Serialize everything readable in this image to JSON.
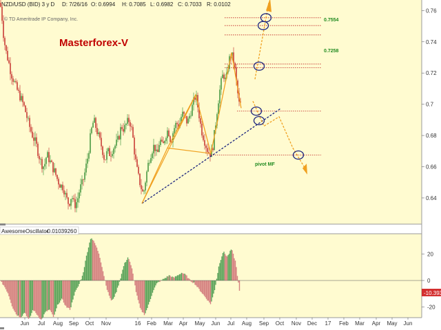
{
  "header": {
    "symbol": "NZD/USD (BID) 3 y D",
    "date": "D: 7/26/16",
    "open": "O: 0.6994",
    "high": "H: 0.7085",
    "low": "L: 0.6982",
    "close": "C: 0.7033",
    "range": "R: 0.0102",
    "copyright": "© TD Ameritrade IP Company, Inc."
  },
  "watermark": "Masterforex-V",
  "annotations": {
    "level_1": "0.7554",
    "level_2": "0.7258",
    "pivot": "pivot MF"
  },
  "oscillator": {
    "name": "AwesomeOscillator",
    "value": "-0.0103926",
    "zero_label": "0",
    "current_value": "-10.393",
    "y_ticks": [
      "20",
      "0",
      "-20"
    ]
  },
  "colors": {
    "panel_bg": "#fffbd0",
    "up_candle": "#2e8b2e",
    "down_candle": "#c02020",
    "trend_line": "#1a237e",
    "pattern_line": "#f0a020",
    "level_line": "#c02020",
    "osc_up": "#5aa35a",
    "osc_down": "#d47f7f",
    "badge": "#d32f2f"
  },
  "chart_data": {
    "type": "candlestick",
    "y_ticks": [
      "0.76",
      "0.74",
      "0.72",
      "0.7",
      "0.68",
      "0.66",
      "0.64"
    ],
    "x_ticks": [
      "Jun",
      "Jul",
      "Aug",
      "Sep",
      "Oct",
      "Nov",
      "16",
      "Feb",
      "Mar",
      "Apr",
      "May",
      "Jun",
      "Jul",
      "Aug",
      "Sep",
      "Oct",
      "Nov",
      "Dec",
      "17",
      "Feb",
      "Mar",
      "Apr",
      "May",
      "Jun"
    ],
    "ylim": [
      0.625,
      0.765
    ],
    "price_path": [
      [
        0,
        0.765
      ],
      [
        2,
        0.76
      ],
      [
        5,
        0.745
      ],
      [
        8,
        0.735
      ],
      [
        12,
        0.728
      ],
      [
        16,
        0.72
      ],
      [
        20,
        0.715
      ],
      [
        24,
        0.71
      ],
      [
        28,
        0.706
      ],
      [
        32,
        0.702
      ],
      [
        36,
        0.697
      ],
      [
        40,
        0.69
      ],
      [
        44,
        0.684
      ],
      [
        48,
        0.679
      ],
      [
        52,
        0.675
      ],
      [
        56,
        0.668
      ],
      [
        60,
        0.662
      ],
      [
        64,
        0.66
      ],
      [
        68,
        0.668
      ],
      [
        72,
        0.664
      ],
      [
        76,
        0.66
      ],
      [
        80,
        0.656
      ],
      [
        84,
        0.651
      ],
      [
        88,
        0.648
      ],
      [
        92,
        0.647
      ],
      [
        96,
        0.64
      ],
      [
        100,
        0.636
      ],
      [
        104,
        0.642
      ],
      [
        108,
        0.635
      ],
      [
        112,
        0.638
      ],
      [
        116,
        0.646
      ],
      [
        120,
        0.65
      ],
      [
        124,
        0.658
      ],
      [
        128,
        0.668
      ],
      [
        132,
        0.682
      ],
      [
        136,
        0.69
      ],
      [
        140,
        0.684
      ],
      [
        144,
        0.678
      ],
      [
        148,
        0.672
      ],
      [
        152,
        0.664
      ],
      [
        156,
        0.67
      ],
      [
        160,
        0.668
      ],
      [
        164,
        0.672
      ],
      [
        168,
        0.674
      ],
      [
        172,
        0.678
      ],
      [
        176,
        0.686
      ],
      [
        180,
        0.684
      ],
      [
        184,
        0.688
      ],
      [
        188,
        0.69
      ],
      [
        192,
        0.682
      ],
      [
        196,
        0.666
      ],
      [
        200,
        0.655
      ],
      [
        204,
        0.648
      ],
      [
        208,
        0.642
      ],
      [
        212,
        0.654
      ],
      [
        216,
        0.664
      ],
      [
        220,
        0.67
      ],
      [
        224,
        0.674
      ],
      [
        228,
        0.666
      ],
      [
        232,
        0.678
      ],
      [
        236,
        0.672
      ],
      [
        240,
        0.68
      ],
      [
        244,
        0.684
      ],
      [
        248,
        0.676
      ],
      [
        252,
        0.684
      ],
      [
        256,
        0.688
      ],
      [
        260,
        0.686
      ],
      [
        264,
        0.694
      ],
      [
        268,
        0.692
      ],
      [
        272,
        0.688
      ],
      [
        276,
        0.694
      ],
      [
        280,
        0.7
      ],
      [
        284,
        0.706
      ],
      [
        288,
        0.696
      ],
      [
        292,
        0.684
      ],
      [
        296,
        0.678
      ],
      [
        300,
        0.672
      ],
      [
        304,
        0.668
      ],
      [
        308,
        0.67
      ],
      [
        312,
        0.684
      ],
      [
        316,
        0.7
      ],
      [
        320,
        0.712
      ],
      [
        324,
        0.72
      ],
      [
        328,
        0.714
      ],
      [
        332,
        0.728
      ],
      [
        336,
        0.732
      ],
      [
        340,
        0.726
      ],
      [
        344,
        0.71
      ],
      [
        348,
        0.697
      ],
      [
        350,
        0.703
      ]
    ],
    "oscillator_series": [
      [
        0,
        0
      ],
      [
        6,
        -4
      ],
      [
        12,
        -10
      ],
      [
        18,
        -20
      ],
      [
        24,
        -26
      ],
      [
        30,
        -28
      ],
      [
        36,
        -24
      ],
      [
        42,
        -30
      ],
      [
        48,
        -22
      ],
      [
        54,
        -26
      ],
      [
        60,
        -30
      ],
      [
        66,
        -24
      ],
      [
        72,
        -22
      ],
      [
        78,
        -28
      ],
      [
        84,
        -18
      ],
      [
        90,
        -14
      ],
      [
        96,
        -20
      ],
      [
        102,
        -22
      ],
      [
        108,
        -10
      ],
      [
        114,
        -4
      ],
      [
        120,
        4
      ],
      [
        126,
        20
      ],
      [
        132,
        33
      ],
      [
        138,
        28
      ],
      [
        144,
        20
      ],
      [
        150,
        6
      ],
      [
        156,
        -8
      ],
      [
        162,
        -16
      ],
      [
        168,
        -10
      ],
      [
        174,
        0
      ],
      [
        180,
        12
      ],
      [
        186,
        18
      ],
      [
        192,
        8
      ],
      [
        198,
        -10
      ],
      [
        204,
        -22
      ],
      [
        210,
        -26
      ],
      [
        216,
        -18
      ],
      [
        222,
        -8
      ],
      [
        228,
        -2
      ],
      [
        234,
        0
      ],
      [
        240,
        2
      ],
      [
        246,
        4
      ],
      [
        252,
        2
      ],
      [
        258,
        4
      ],
      [
        264,
        6
      ],
      [
        270,
        4
      ],
      [
        276,
        0
      ],
      [
        282,
        -2
      ],
      [
        288,
        -6
      ],
      [
        294,
        -10
      ],
      [
        300,
        -14
      ],
      [
        306,
        -18
      ],
      [
        312,
        -6
      ],
      [
        318,
        12
      ],
      [
        324,
        22
      ],
      [
        330,
        18
      ],
      [
        336,
        24
      ],
      [
        342,
        14
      ],
      [
        348,
        -10
      ]
    ],
    "oscillator_ylim": [
      -28,
      32
    ],
    "resistance_levels": [
      0.7554,
      0.7504,
      0.7444,
      0.7258,
      0.7234
    ],
    "support_levels": [
      0.6956,
      0.6675
    ],
    "legend": "none",
    "grid": false
  }
}
